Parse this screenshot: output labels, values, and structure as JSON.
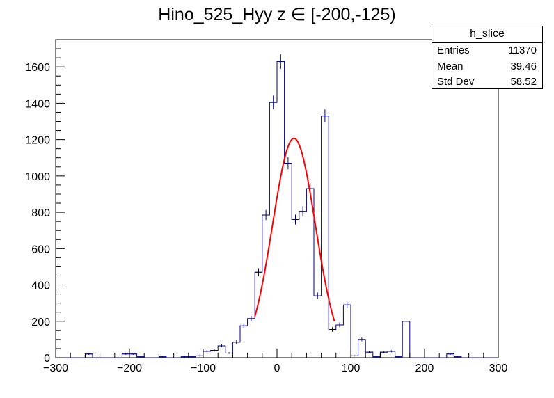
{
  "title": "Hino_525_Hyy z  ∈ [-200,-125)",
  "stats": {
    "name": "h_slice",
    "rows": [
      {
        "label": "Entries",
        "value": "11370"
      },
      {
        "label": "Mean",
        "value": "39.46"
      },
      {
        "label": "Std Dev",
        "value": "58.52"
      }
    ]
  },
  "chart_data": {
    "type": "bar",
    "title": "Hino_525_Hyy z  ∈ [-200,-125)",
    "xlim": [
      -300,
      300
    ],
    "ylim": [
      0,
      1750
    ],
    "x_ticks": [
      -300,
      -200,
      -100,
      0,
      100,
      200,
      300
    ],
    "y_ticks": [
      0,
      200,
      400,
      600,
      800,
      1000,
      1200,
      1400,
      1600
    ],
    "bin_width": 10,
    "histogram_color": "#000080",
    "fit_color": "#ff0000",
    "bins": [
      {
        "x": -260,
        "y": 20
      },
      {
        "x": -210,
        "y": 20
      },
      {
        "x": -200,
        "y": 20
      },
      {
        "x": -190,
        "y": 5
      },
      {
        "x": -160,
        "y": 5
      },
      {
        "x": -130,
        "y": 5
      },
      {
        "x": -120,
        "y": 5
      },
      {
        "x": -110,
        "y": 10
      },
      {
        "x": -100,
        "y": 35
      },
      {
        "x": -90,
        "y": 40
      },
      {
        "x": -80,
        "y": 65
      },
      {
        "x": -70,
        "y": 25
      },
      {
        "x": -60,
        "y": 85
      },
      {
        "x": -50,
        "y": 175
      },
      {
        "x": -40,
        "y": 215
      },
      {
        "x": -30,
        "y": 470
      },
      {
        "x": -20,
        "y": 785
      },
      {
        "x": -10,
        "y": 1405
      },
      {
        "x": 0,
        "y": 1630
      },
      {
        "x": 10,
        "y": 1070
      },
      {
        "x": 20,
        "y": 760
      },
      {
        "x": 30,
        "y": 805
      },
      {
        "x": 40,
        "y": 930
      },
      {
        "x": 50,
        "y": 340
      },
      {
        "x": 60,
        "y": 1330
      },
      {
        "x": 70,
        "y": 155
      },
      {
        "x": 80,
        "y": 180
      },
      {
        "x": 90,
        "y": 290
      },
      {
        "x": 100,
        "y": 10
      },
      {
        "x": 110,
        "y": 100
      },
      {
        "x": 120,
        "y": 30
      },
      {
        "x": 130,
        "y": 5
      },
      {
        "x": 140,
        "y": 30
      },
      {
        "x": 150,
        "y": 35
      },
      {
        "x": 160,
        "y": 5
      },
      {
        "x": 170,
        "y": 200
      },
      {
        "x": 230,
        "y": 20
      },
      {
        "x": 240,
        "y": 5
      }
    ],
    "fit": {
      "type": "gaussian",
      "constant": 1207,
      "mean": 23,
      "sigma": 29,
      "range": [
        -30,
        78
      ]
    }
  }
}
